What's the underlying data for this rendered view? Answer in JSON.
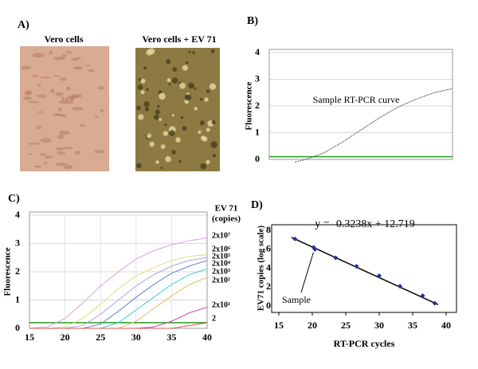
{
  "panel_a": {
    "label": "A)",
    "images": [
      "Vero cells",
      "Vero cells + EV 71"
    ]
  },
  "chart_data": [
    {
      "type": "line",
      "panel_label": "B)",
      "ylabel": "Fluorescence",
      "annotation": "Sample RT-PCR curve",
      "ylim": [
        0,
        4
      ],
      "yticks": [
        0,
        1,
        2,
        3,
        4
      ],
      "xlim": [
        0,
        10
      ],
      "grid": true,
      "threshold": 0.1,
      "threshold_color": "#22a022",
      "x": [
        1.4,
        2,
        3,
        4,
        5,
        6,
        7,
        8,
        9,
        10
      ],
      "series": [
        {
          "color": "#555555",
          "values": [
            -0.1,
            0,
            0.25,
            0.65,
            1.1,
            1.55,
            1.95,
            2.25,
            2.5,
            2.65
          ]
        }
      ]
    },
    {
      "type": "line",
      "panel_label": "C)",
      "ylabel": "Fluorescence",
      "legend_title": [
        "EV 71",
        "(copies)"
      ],
      "xlim": [
        15,
        40
      ],
      "xticks": [
        15,
        20,
        25,
        30,
        35,
        40
      ],
      "ylim": [
        0,
        4
      ],
      "yticks": [
        0,
        1,
        2,
        3,
        4
      ],
      "grid": true,
      "threshold": 0.2,
      "threshold_color": "#22a022",
      "x": [
        15,
        17.5,
        20,
        22.5,
        25,
        27.5,
        30,
        32.5,
        35,
        37.5,
        40
      ],
      "series": [
        {
          "name": "2x10⁷",
          "color": "#d8a0e0",
          "values": [
            0,
            0.05,
            0.35,
            0.9,
            1.5,
            2.0,
            2.45,
            2.75,
            2.95,
            3.1,
            3.2
          ]
        },
        {
          "name": "2x10⁶",
          "color": "#e0dc80",
          "values": [
            0,
            0,
            0.05,
            0.35,
            0.85,
            1.4,
            1.85,
            2.15,
            2.4,
            2.55,
            2.6
          ]
        },
        {
          "name": "2x10⁵",
          "color": "#b0a0e0",
          "values": [
            0,
            0,
            0,
            0.1,
            0.5,
            1.0,
            1.5,
            1.9,
            2.2,
            2.4,
            2.5
          ]
        },
        {
          "name": "2x10⁴",
          "color": "#6080d0",
          "values": [
            0,
            0,
            0,
            0,
            0.15,
            0.6,
            1.1,
            1.55,
            1.95,
            2.2,
            2.4
          ]
        },
        {
          "name": "2x10³",
          "color": "#40d0d0",
          "values": [
            0,
            0,
            0,
            0,
            0,
            0.2,
            0.65,
            1.1,
            1.55,
            1.9,
            2.1
          ]
        },
        {
          "name": "2x10²",
          "color": "#e0c060",
          "values": [
            0,
            0,
            0,
            0,
            0,
            0,
            0.25,
            0.7,
            1.15,
            1.55,
            1.8
          ]
        },
        {
          "name": "2x10¹",
          "color": "#d040b0",
          "values": [
            0,
            0,
            0,
            0,
            0,
            0,
            0,
            0.05,
            0.25,
            0.55,
            0.75
          ]
        },
        {
          "name": "2",
          "color": "#e05050",
          "values": [
            0,
            0,
            0,
            0,
            0,
            0,
            0,
            0,
            0,
            0.1,
            0.2
          ]
        }
      ]
    },
    {
      "type": "scatter",
      "panel_label": "D)",
      "xlabel": "RT-PCR cycles",
      "ylabel": "EV71 copies (log scale)",
      "xlim": [
        15,
        40
      ],
      "xticks": [
        15,
        20,
        25,
        30,
        35,
        40
      ],
      "ylim": [
        0,
        8
      ],
      "yticks": [
        0,
        2,
        4,
        6,
        8
      ],
      "equation": "y = -0.3238x + 12.719",
      "fit": {
        "slope": -0.3238,
        "intercept": 12.719
      },
      "annotation": "Sample",
      "color": "#2030a0",
      "x": [
        17.4,
        20.2,
        20.4,
        23.5,
        26.6,
        30,
        33.1,
        36.5,
        38.3
      ],
      "values": [
        7.1,
        6.2,
        6.0,
        5.1,
        4.2,
        3.2,
        2.1,
        1.1,
        0.3
      ]
    }
  ]
}
